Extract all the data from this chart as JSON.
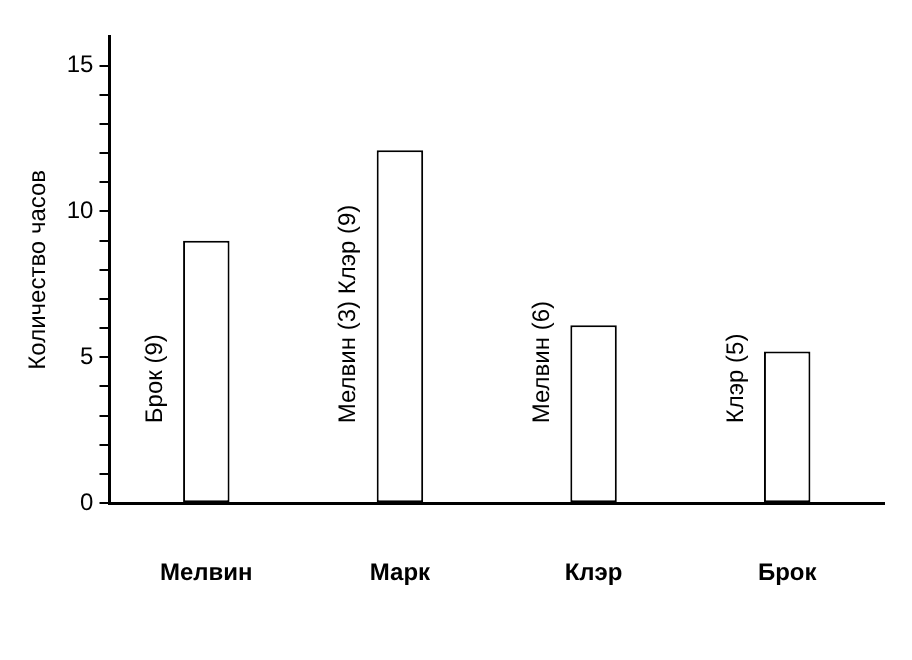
{
  "chart_data": {
    "type": "bar",
    "ylabel": "Количество часов",
    "categories": [
      "Мелвин",
      "Марк",
      "Клэр",
      "Брок"
    ],
    "values": [
      9,
      12.1,
      6.1,
      5.2
    ],
    "color": "#ffffff",
    "ylim": [
      0,
      16
    ],
    "yticks": [
      0,
      {
        "value": 1,
        "label": null
      },
      {
        "value": 2,
        "label": null
      },
      {
        "value": 3,
        "label": null
      },
      {
        "value": 4,
        "label": null
      },
      5,
      {
        "value": 6,
        "label": null
      },
      {
        "value": 7,
        "label": null
      },
      {
        "value": 8,
        "label": null
      },
      {
        "value": 9,
        "label": null
      },
      10,
      {
        "value": 11,
        "label": null
      },
      {
        "value": 12,
        "label": null
      },
      {
        "value": 13,
        "label": null
      },
      {
        "value": 14,
        "label": null
      },
      15
    ],
    "annotations": [
      "Брок (9)",
      "Мелвин (3) Клэр (9)",
      "Мелвин (6)",
      "Клэр (5)"
    ],
    "grid": false,
    "legend": false
  }
}
